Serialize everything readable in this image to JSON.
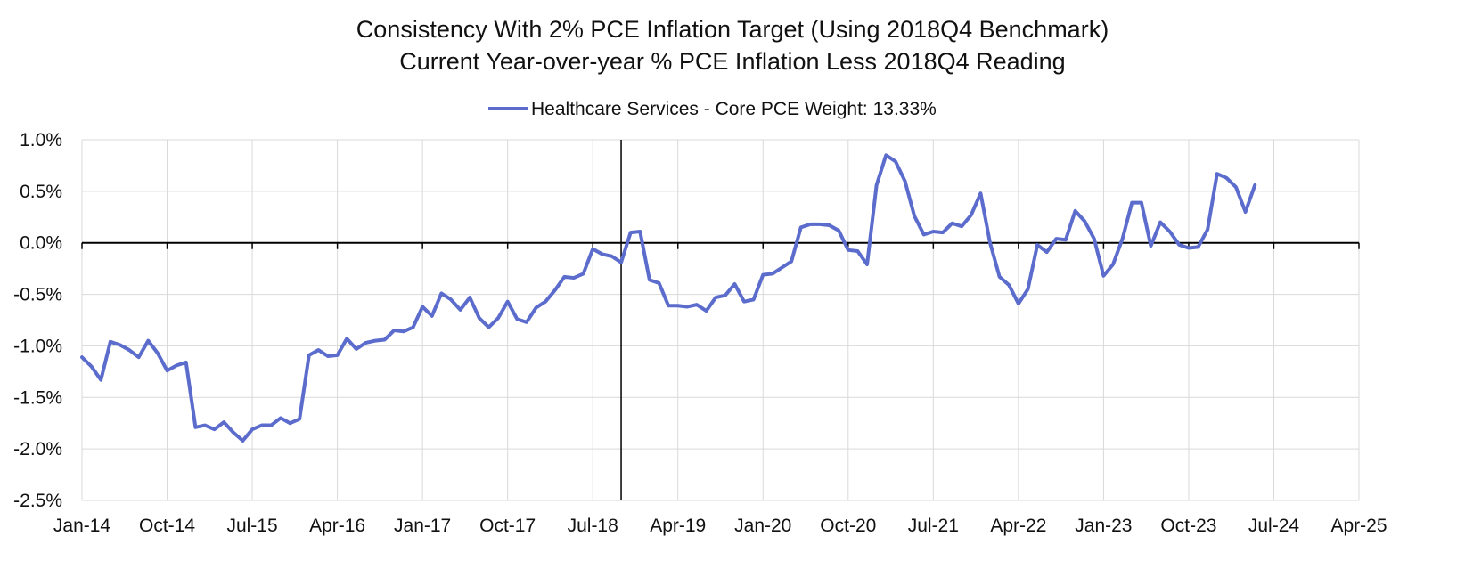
{
  "chart_data": {
    "type": "line",
    "title": "Consistency With 2% PCE Inflation Target (Using 2018Q4 Benchmark)",
    "subtitle": "Current Year-over-year % PCE Inflation Less 2018Q4 Reading",
    "xlabel": "",
    "ylabel": "",
    "legend_position": "top-center",
    "grid": true,
    "ylim": [
      -2.5,
      1.0
    ],
    "y_ticks": [
      1.0,
      0.5,
      0.0,
      -0.5,
      -1.0,
      -1.5,
      -2.0,
      -2.5
    ],
    "y_tick_labels": [
      "1.0%",
      "0.5%",
      "0.0%",
      "-0.5%",
      "-1.0%",
      "-1.5%",
      "-2.0%",
      "-2.5%"
    ],
    "x_start": "Jan-14",
    "x_months_span": 135,
    "x_tick_labels": [
      "Jan-14",
      "Oct-14",
      "Jul-15",
      "Apr-16",
      "Jan-17",
      "Oct-17",
      "Jul-18",
      "Apr-19",
      "Jan-20",
      "Oct-20",
      "Jul-21",
      "Apr-22",
      "Jan-23",
      "Oct-23",
      "Jul-24",
      "Apr-25"
    ],
    "x_tick_step_months": 9,
    "benchmark_line_month_index": 57,
    "benchmark_label": "2018Q4",
    "series": [
      {
        "name": "Healthcare Services - Core PCE Weight: 13.33%",
        "color": "#5b6ccc",
        "start": "Jan-14",
        "values": [
          -1.11,
          -1.2,
          -1.33,
          -0.96,
          -0.99,
          -1.04,
          -1.11,
          -0.95,
          -1.07,
          -1.24,
          -1.19,
          -1.16,
          -1.79,
          -1.77,
          -1.81,
          -1.74,
          -1.84,
          -1.92,
          -1.81,
          -1.77,
          -1.77,
          -1.7,
          -1.75,
          -1.71,
          -1.09,
          -1.04,
          -1.1,
          -1.09,
          -0.93,
          -1.03,
          -0.97,
          -0.95,
          -0.94,
          -0.85,
          -0.86,
          -0.82,
          -0.62,
          -0.71,
          -0.49,
          -0.55,
          -0.65,
          -0.53,
          -0.73,
          -0.82,
          -0.73,
          -0.57,
          -0.74,
          -0.77,
          -0.63,
          -0.57,
          -0.46,
          -0.33,
          -0.34,
          -0.3,
          -0.06,
          -0.11,
          -0.13,
          -0.19,
          0.1,
          0.11,
          -0.36,
          -0.39,
          -0.61,
          -0.61,
          -0.62,
          -0.6,
          -0.66,
          -0.53,
          -0.51,
          -0.4,
          -0.57,
          -0.55,
          -0.31,
          -0.3,
          -0.24,
          -0.18,
          0.15,
          0.18,
          0.18,
          0.17,
          0.12,
          -0.07,
          -0.08,
          -0.21,
          0.56,
          0.85,
          0.79,
          0.6,
          0.26,
          0.08,
          0.11,
          0.1,
          0.19,
          0.16,
          0.27,
          0.48,
          0.0,
          -0.33,
          -0.41,
          -0.59,
          -0.45,
          -0.02,
          -0.09,
          0.04,
          0.03,
          0.31,
          0.21,
          0.04,
          -0.32,
          -0.21,
          0.04,
          0.39,
          0.39,
          -0.03,
          0.2,
          0.11,
          -0.02,
          -0.05,
          -0.04,
          0.13,
          0.67,
          0.63,
          0.54,
          0.3,
          0.56
        ]
      }
    ]
  }
}
